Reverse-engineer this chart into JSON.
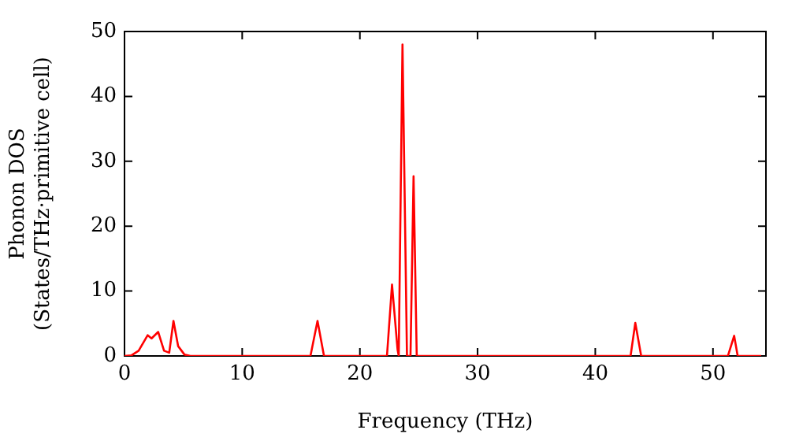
{
  "chart_data": {
    "type": "line",
    "xlabel": "Frequency (THz)",
    "ylabel": "Phonon DOS\n(States/THz·primitive cell)",
    "x": [
      0,
      0.6,
      1.2,
      1.97,
      2.3,
      2.86,
      3.36,
      3.8,
      4.16,
      4.56,
      5.1,
      5.6,
      15.8,
      16.4,
      16.95,
      17.5,
      22.3,
      22.73,
      23.2,
      23.3,
      23.4,
      23.62,
      24.0,
      24.3,
      24.56,
      24.83,
      25.2,
      43.0,
      43.4,
      43.9,
      44.3,
      51.27,
      51.8,
      52.1,
      52.5,
      54.1
    ],
    "series": [
      {
        "color": "#ff0000",
        "values": [
          0,
          0.1,
          0.8,
          3.2,
          2.7,
          3.7,
          0.8,
          0.5,
          5.4,
          1.5,
          0.2,
          0,
          0,
          5.4,
          0,
          0,
          0,
          11.0,
          1.0,
          0,
          0,
          48.0,
          0,
          0,
          27.7,
          0,
          0,
          0,
          5.1,
          0,
          0,
          0,
          3.1,
          0,
          0,
          0
        ]
      }
    ],
    "xlim": [
      0,
      54.5
    ],
    "xticks": [
      0,
      10,
      20,
      30,
      40,
      50
    ],
    "ylim": [
      0,
      50
    ],
    "yticks": [
      0,
      10,
      20,
      30,
      40,
      50
    ],
    "grid": false,
    "legend": false,
    "marker": "none",
    "line_style": "solid"
  }
}
